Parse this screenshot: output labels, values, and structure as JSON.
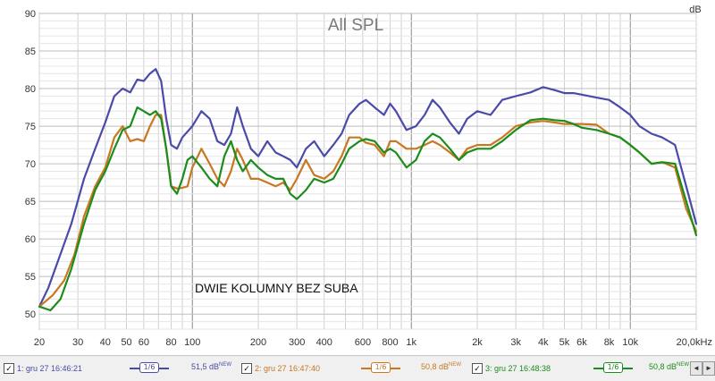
{
  "chart_data": {
    "type": "line",
    "title": "All SPL",
    "annotation": "DWIE KOLUMNY BEZ SUBA",
    "ylabel": "dB",
    "xscale": "log",
    "xlim": [
      20,
      20000
    ],
    "ylim": [
      48,
      90
    ],
    "grid": true,
    "y_ticks": [
      50,
      55,
      60,
      65,
      70,
      75,
      80,
      85,
      90
    ],
    "x_ticks": [
      {
        "v": 20,
        "l": "20"
      },
      {
        "v": 30,
        "l": "30"
      },
      {
        "v": 40,
        "l": "40"
      },
      {
        "v": 50,
        "l": "50"
      },
      {
        "v": 60,
        "l": "60"
      },
      {
        "v": 80,
        "l": "80"
      },
      {
        "v": 100,
        "l": "100"
      },
      {
        "v": 200,
        "l": "200"
      },
      {
        "v": 300,
        "l": "300"
      },
      {
        "v": 400,
        "l": "400"
      },
      {
        "v": 600,
        "l": "600"
      },
      {
        "v": 800,
        "l": "800"
      },
      {
        "v": 1000,
        "l": "1k"
      },
      {
        "v": 2000,
        "l": "2k"
      },
      {
        "v": 3000,
        "l": "3k"
      },
      {
        "v": 4000,
        "l": "4k"
      },
      {
        "v": 5000,
        "l": "5k"
      },
      {
        "v": 6000,
        "l": "6k"
      },
      {
        "v": 8000,
        "l": "8k"
      },
      {
        "v": 10000,
        "l": "10k"
      },
      {
        "v": 20000,
        "l": "20,0kHz"
      }
    ],
    "series": [
      {
        "name": "1: gru 27 16:46:21",
        "color": "#4a4aa8",
        "points": [
          [
            20,
            51
          ],
          [
            22,
            53.5
          ],
          [
            25,
            58
          ],
          [
            28,
            62
          ],
          [
            32,
            68
          ],
          [
            36,
            72
          ],
          [
            40,
            75.5
          ],
          [
            44,
            79
          ],
          [
            48,
            80
          ],
          [
            52,
            79.5
          ],
          [
            56,
            81.2
          ],
          [
            60,
            81
          ],
          [
            64,
            82
          ],
          [
            68,
            82.6
          ],
          [
            72,
            81
          ],
          [
            76,
            76
          ],
          [
            80,
            72.5
          ],
          [
            85,
            72
          ],
          [
            90,
            73.5
          ],
          [
            100,
            75
          ],
          [
            110,
            77
          ],
          [
            120,
            76
          ],
          [
            130,
            73
          ],
          [
            140,
            72.5
          ],
          [
            150,
            74
          ],
          [
            160,
            77.5
          ],
          [
            170,
            75
          ],
          [
            185,
            72
          ],
          [
            200,
            71
          ],
          [
            220,
            73
          ],
          [
            240,
            71.5
          ],
          [
            260,
            71
          ],
          [
            280,
            70.5
          ],
          [
            300,
            69.5
          ],
          [
            330,
            72
          ],
          [
            360,
            73
          ],
          [
            400,
            71
          ],
          [
            440,
            72.5
          ],
          [
            480,
            74
          ],
          [
            520,
            76.5
          ],
          [
            580,
            78
          ],
          [
            620,
            78.5
          ],
          [
            680,
            77.5
          ],
          [
            750,
            76.5
          ],
          [
            800,
            78
          ],
          [
            850,
            77
          ],
          [
            950,
            74.5
          ],
          [
            1050,
            75
          ],
          [
            1150,
            76.5
          ],
          [
            1250,
            78.5
          ],
          [
            1350,
            77.5
          ],
          [
            1500,
            75.5
          ],
          [
            1650,
            74
          ],
          [
            1800,
            76
          ],
          [
            2000,
            77
          ],
          [
            2300,
            76.5
          ],
          [
            2600,
            78.5
          ],
          [
            3000,
            79
          ],
          [
            3500,
            79.5
          ],
          [
            4000,
            80.2
          ],
          [
            4500,
            79.8
          ],
          [
            5000,
            79.4
          ],
          [
            5500,
            79.4
          ],
          [
            6000,
            79.2
          ],
          [
            7000,
            78.8
          ],
          [
            8000,
            78.5
          ],
          [
            9000,
            77.5
          ],
          [
            10000,
            76.5
          ],
          [
            11000,
            75
          ],
          [
            12500,
            74
          ],
          [
            14000,
            73.5
          ],
          [
            16000,
            72.5
          ],
          [
            18000,
            67
          ],
          [
            20000,
            62
          ]
        ]
      },
      {
        "name": "2: gru 27 16:47:40",
        "color": "#c87820",
        "points": [
          [
            20,
            51
          ],
          [
            23,
            52.5
          ],
          [
            26,
            54.5
          ],
          [
            29,
            58
          ],
          [
            32,
            63
          ],
          [
            36,
            67
          ],
          [
            40,
            69.5
          ],
          [
            44,
            73.5
          ],
          [
            48,
            75
          ],
          [
            52,
            73
          ],
          [
            56,
            73.3
          ],
          [
            60,
            73
          ],
          [
            64,
            75
          ],
          [
            68,
            76.5
          ],
          [
            72,
            76.5
          ],
          [
            76,
            72
          ],
          [
            80,
            67
          ],
          [
            85,
            66.7
          ],
          [
            90,
            66.8
          ],
          [
            95,
            67
          ],
          [
            100,
            69.5
          ],
          [
            110,
            72
          ],
          [
            120,
            70
          ],
          [
            130,
            68
          ],
          [
            140,
            67
          ],
          [
            150,
            69
          ],
          [
            160,
            72
          ],
          [
            170,
            70.5
          ],
          [
            185,
            68
          ],
          [
            200,
            68
          ],
          [
            220,
            67.5
          ],
          [
            240,
            67
          ],
          [
            260,
            67.5
          ],
          [
            280,
            66.5
          ],
          [
            300,
            68
          ],
          [
            330,
            70.5
          ],
          [
            360,
            68.5
          ],
          [
            400,
            68
          ],
          [
            440,
            69
          ],
          [
            480,
            71
          ],
          [
            520,
            73.5
          ],
          [
            580,
            73.5
          ],
          [
            620,
            72.8
          ],
          [
            680,
            72.5
          ],
          [
            750,
            71
          ],
          [
            800,
            73
          ],
          [
            850,
            73
          ],
          [
            950,
            72
          ],
          [
            1050,
            72
          ],
          [
            1150,
            72.5
          ],
          [
            1250,
            73
          ],
          [
            1350,
            72.5
          ],
          [
            1500,
            71.5
          ],
          [
            1650,
            70.5
          ],
          [
            1800,
            72
          ],
          [
            2000,
            72.5
          ],
          [
            2300,
            72.5
          ],
          [
            2600,
            73.5
          ],
          [
            3000,
            75
          ],
          [
            3500,
            75.5
          ],
          [
            4000,
            75.7
          ],
          [
            4500,
            75.5
          ],
          [
            5000,
            75.3
          ],
          [
            5500,
            75.3
          ],
          [
            6000,
            75.3
          ],
          [
            7000,
            75.2
          ],
          [
            8000,
            74
          ],
          [
            9000,
            73.5
          ],
          [
            10000,
            72.5
          ],
          [
            11000,
            71.5
          ],
          [
            12500,
            70
          ],
          [
            14000,
            70.2
          ],
          [
            16000,
            69.5
          ],
          [
            18000,
            64
          ],
          [
            20000,
            61
          ]
        ]
      },
      {
        "name": "3: gru 27 16:48:38",
        "color": "#1c8c1c",
        "points": [
          [
            20,
            51
          ],
          [
            22.5,
            50.5
          ],
          [
            25,
            52
          ],
          [
            28,
            56
          ],
          [
            32,
            62
          ],
          [
            36,
            66.5
          ],
          [
            40,
            69
          ],
          [
            44,
            72
          ],
          [
            48,
            74.5
          ],
          [
            52,
            75
          ],
          [
            56,
            77.5
          ],
          [
            60,
            77
          ],
          [
            64,
            76.5
          ],
          [
            68,
            77
          ],
          [
            72,
            76
          ],
          [
            76,
            72
          ],
          [
            80,
            67
          ],
          [
            85,
            66
          ],
          [
            90,
            68
          ],
          [
            95,
            70.5
          ],
          [
            100,
            71
          ],
          [
            110,
            69.5
          ],
          [
            120,
            68
          ],
          [
            130,
            67
          ],
          [
            140,
            71
          ],
          [
            150,
            73
          ],
          [
            160,
            70.5
          ],
          [
            170,
            69
          ],
          [
            185,
            70.5
          ],
          [
            200,
            69.5
          ],
          [
            220,
            68.5
          ],
          [
            240,
            68
          ],
          [
            260,
            68
          ],
          [
            280,
            66
          ],
          [
            300,
            65.3
          ],
          [
            330,
            66.5
          ],
          [
            360,
            68
          ],
          [
            400,
            67.5
          ],
          [
            440,
            68
          ],
          [
            480,
            70
          ],
          [
            520,
            72
          ],
          [
            580,
            73
          ],
          [
            620,
            73.3
          ],
          [
            680,
            73
          ],
          [
            750,
            71.5
          ],
          [
            800,
            72
          ],
          [
            850,
            71.5
          ],
          [
            950,
            69.5
          ],
          [
            1050,
            70.5
          ],
          [
            1150,
            73
          ],
          [
            1250,
            74
          ],
          [
            1350,
            73.5
          ],
          [
            1500,
            72
          ],
          [
            1650,
            70.5
          ],
          [
            1800,
            71.5
          ],
          [
            2000,
            72
          ],
          [
            2300,
            72
          ],
          [
            2600,
            73
          ],
          [
            3000,
            74.5
          ],
          [
            3500,
            75.8
          ],
          [
            4000,
            76
          ],
          [
            4500,
            75.8
          ],
          [
            5000,
            75.7
          ],
          [
            5500,
            75.3
          ],
          [
            6000,
            74.8
          ],
          [
            7000,
            74.5
          ],
          [
            8000,
            74
          ],
          [
            9000,
            73.5
          ],
          [
            10000,
            72.5
          ],
          [
            11000,
            71.5
          ],
          [
            12500,
            70
          ],
          [
            14000,
            70.2
          ],
          [
            16000,
            70
          ],
          [
            18000,
            65
          ],
          [
            20000,
            60.5
          ]
        ]
      }
    ]
  },
  "legend": [
    {
      "check": "✓",
      "label": "1: gru 27 16:46:21",
      "smoothing": "1/6",
      "level": "51,5 dB",
      "level_sup": "NEW",
      "color": "#4a4aa8"
    },
    {
      "check": "✓",
      "label": "2: gru 27 16:47:40",
      "smoothing": "1/6",
      "level": "50,8 dB",
      "level_sup": "NEW",
      "color": "#c87820"
    },
    {
      "check": "✓",
      "label": "3: gru 27 16:48:38",
      "smoothing": "1/6",
      "level": "50,8 dB",
      "level_sup": "NEW",
      "color": "#1c8c1c"
    }
  ],
  "scroll": {
    "left": "◄",
    "right": "►"
  },
  "colors": {
    "grid": "#d0d0d0",
    "grid_major": "#888888",
    "axis": "#444444",
    "title": "#7a7a7a"
  }
}
